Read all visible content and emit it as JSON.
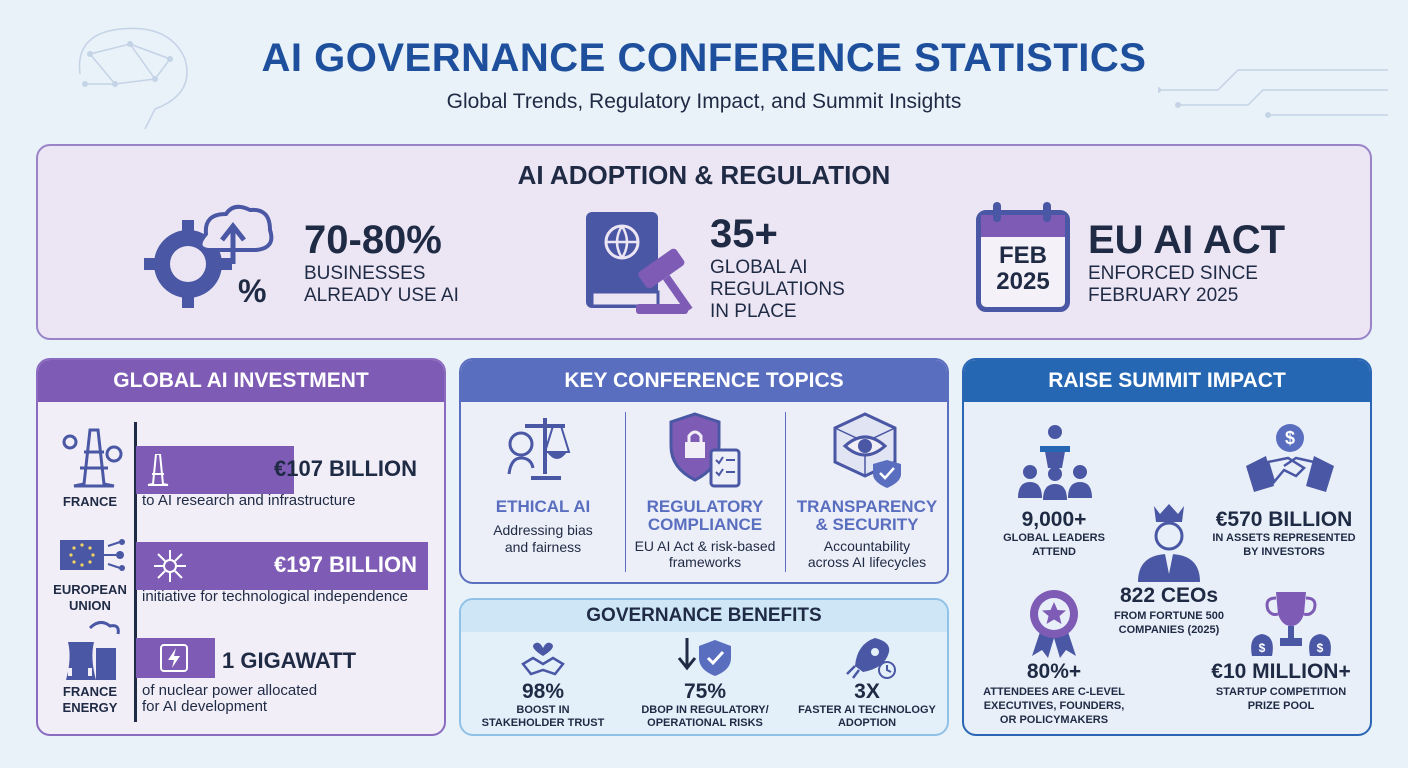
{
  "header": {
    "title": "AI GOVERNANCE CONFERENCE STATISTICS",
    "subtitle": "Global Trends, Regulatory Impact, and Summit Insights"
  },
  "adoption": {
    "heading": "AI ADOPTION & REGULATION",
    "stats": [
      {
        "value": "70-80%",
        "line1": "BUSINESSES",
        "line2": "ALREADY USE AI",
        "icon": "gear-cloud-percent-icon"
      },
      {
        "value": "35+",
        "line1": "GLOBAL AI",
        "line2": "REGULATIONS",
        "line3": "IN PLACE",
        "icon": "law-book-gavel-icon"
      },
      {
        "value": "EU AI ACT",
        "line1": "ENFORCED SINCE",
        "line2": "FEBRUARY 2025",
        "icon": "calendar-icon",
        "calendar_month": "FEB",
        "calendar_year": "2025"
      }
    ]
  },
  "investment": {
    "heading": "GLOBAL AI INVESTMENT",
    "rows": [
      {
        "label": "FRANCE",
        "amount": "€107 BILLION",
        "desc": "to AI research and infrastructure",
        "fill": 0.54
      },
      {
        "label1": "EUROPEAN",
        "label2": "UNION",
        "amount": "€197 BILLION",
        "desc": "initiative for technological independence",
        "fill": 1.0
      },
      {
        "label1": "FRANCE",
        "label2": "ENERGY",
        "amount": "1 GIGAWATT",
        "desc1": "of nuclear power allocated",
        "desc2": "for AI development",
        "fill": 0.27
      }
    ]
  },
  "topics": {
    "heading": "KEY CONFERENCE TOPICS",
    "items": [
      {
        "title1": "ETHICAL AI",
        "desc1": "Addressing bias",
        "desc2": "and fairness"
      },
      {
        "title1": "REGULATORY",
        "title2": "COMPLIANCE",
        "desc1": "EU AI Act & risk-based",
        "desc2": "frameworks"
      },
      {
        "title1": "TRANSPARENCY",
        "title2": "& SECURITY",
        "desc1": "Accountability",
        "desc2": "across AI lifecycles"
      }
    ]
  },
  "benefits": {
    "heading": "GOVERNANCE BENEFITS",
    "items": [
      {
        "value": "98%",
        "line1": "BOOST IN",
        "line2": "STAKEHOLDER TRUST"
      },
      {
        "value": "75%",
        "line1": "DBOP IN REGULATORY/",
        "line2": "OPERATIONAL RISKS"
      },
      {
        "value": "3X",
        "line1": "FASTER AI TECHNOLOGY",
        "line2": "ADOPTION"
      }
    ]
  },
  "raise": {
    "heading": "RAISE SUMMIT IMPACT",
    "leaders": {
      "value": "9,000+",
      "line1": "GLOBAL LEADERS",
      "line2": "ATTEND"
    },
    "assets": {
      "value": "€570 BILLION",
      "line1": "IN ASSETS REPRESENTED",
      "line2": "BY INVESTORS"
    },
    "ceos": {
      "value": "822 CEOs",
      "line1": "FROM FORTUNE 500",
      "line2": "COMPANIES (2025)"
    },
    "executives": {
      "value": "80%+",
      "line1": "ATTENDEES ARE C-LEVEL",
      "line2": "EXECUTIVES, FOUNDERS,",
      "line3": "OR POLICYMAKERS"
    },
    "prize": {
      "value": "€10 MILLION+",
      "line1": "STARTUP COMPETITION",
      "line2": "PRIZE POOL"
    }
  },
  "colors": {
    "title_blue": "#1d4f9c",
    "purple": "#7e5bb5",
    "indigo": "#5a6ec0",
    "blue": "#2667b4",
    "light_blue": "#cfe6f6"
  }
}
